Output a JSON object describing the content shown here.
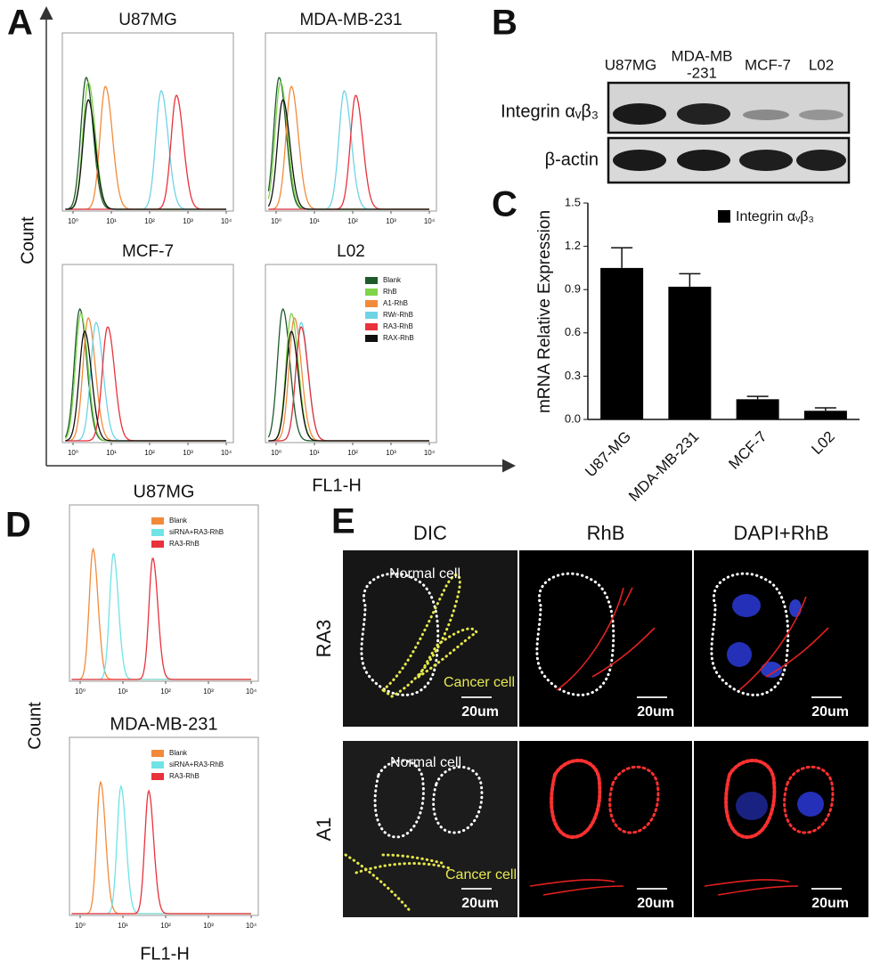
{
  "panel_labels": [
    "A",
    "B",
    "C",
    "D",
    "E"
  ],
  "panel_a": {
    "y_label": "Count",
    "x_label": "FL1-H",
    "xlim": [
      1,
      10000
    ],
    "xticks": [
      {
        "value": 1,
        "label": "10⁰"
      },
      {
        "value": 10,
        "label": "10¹"
      },
      {
        "value": 100,
        "label": "10²"
      },
      {
        "value": 1000,
        "label": "10³"
      },
      {
        "value": 10000,
        "label": "10⁴"
      }
    ],
    "series": [
      {
        "name": "Blank",
        "color": "#1e5a2c"
      },
      {
        "name": "RhB",
        "color": "#7fd44a"
      },
      {
        "name": "A1-RhB",
        "color": "#f28a3a"
      },
      {
        "name": "RWr-RhB",
        "color": "#6fd3e6"
      },
      {
        "name": "RA3-RhB",
        "color": "#e8323c"
      },
      {
        "name": "RAX-RhB",
        "color": "#111111"
      }
    ],
    "plots": [
      {
        "title": "U87MG",
        "peaks": [
          2.2,
          2.5,
          7,
          200,
          500,
          2.5
        ]
      },
      {
        "title": "MDA-MB-231",
        "peaks": [
          1.2,
          1.3,
          2.5,
          60,
          120,
          1.5
        ]
      },
      {
        "title": "MCF-7",
        "peaks": [
          1.5,
          1.6,
          2.5,
          4,
          8,
          2
        ]
      },
      {
        "title": "L02",
        "peaks": [
          1.5,
          2.5,
          3,
          4.5,
          4.5,
          2.5
        ],
        "legend": "right"
      }
    ]
  },
  "panel_b": {
    "lanes": [
      "U87MG",
      "MDA-MB\n-231",
      "MCF-7",
      "L02"
    ],
    "rows": [
      "Integrin αᵥβ₃",
      "β-actin"
    ]
  },
  "chart_data": {
    "type": "bar",
    "y_label": "mRNA Relative Expression",
    "categories": [
      "U87-MG",
      "MDA-MB-231",
      "MCF-7",
      "L02"
    ],
    "series": [
      {
        "name": "Integrin αᵥβ₃",
        "color": "#000000",
        "values": [
          1.05,
          0.92,
          0.14,
          0.06
        ],
        "error": [
          0.14,
          0.09,
          0.02,
          0.02
        ]
      }
    ],
    "ylim": [
      0,
      1.5
    ],
    "yticks": [
      {
        "value": 0,
        "label": "0.0"
      },
      0.3,
      0.6,
      0.9,
      1.2,
      1.5
    ]
  },
  "panel_d": {
    "y_label": "Count",
    "x_label": "FL1-H",
    "xlim": [
      1,
      10000
    ],
    "xticks": [
      {
        "value": 1,
        "label": "10⁰"
      },
      {
        "value": 10,
        "label": "10¹"
      },
      {
        "value": 100,
        "label": "10²"
      },
      {
        "value": 1000,
        "label": "10³"
      },
      {
        "value": 10000,
        "label": "10⁴"
      }
    ],
    "series": [
      {
        "name": "Blank",
        "color": "#f28a3a"
      },
      {
        "name": "siRNA+RA3-RhB",
        "color": "#6fe3e6"
      },
      {
        "name": "RA3-RhB",
        "color": "#e8323c"
      }
    ],
    "plots": [
      {
        "title": "U87MG",
        "peaks": [
          2,
          6,
          50
        ],
        "legend": "upper right"
      },
      {
        "title": "MDA-MB-231",
        "peaks": [
          3,
          9,
          40
        ],
        "legend": "upper right"
      }
    ]
  },
  "panel_e": {
    "columns": [
      "DIC",
      "RhB",
      "DAPI+RhB"
    ],
    "rows": [
      "RA3",
      "A1"
    ],
    "normal_cell": "Normal cell",
    "cancer_cell": "Cancer cell",
    "scale_bar": "20um"
  }
}
